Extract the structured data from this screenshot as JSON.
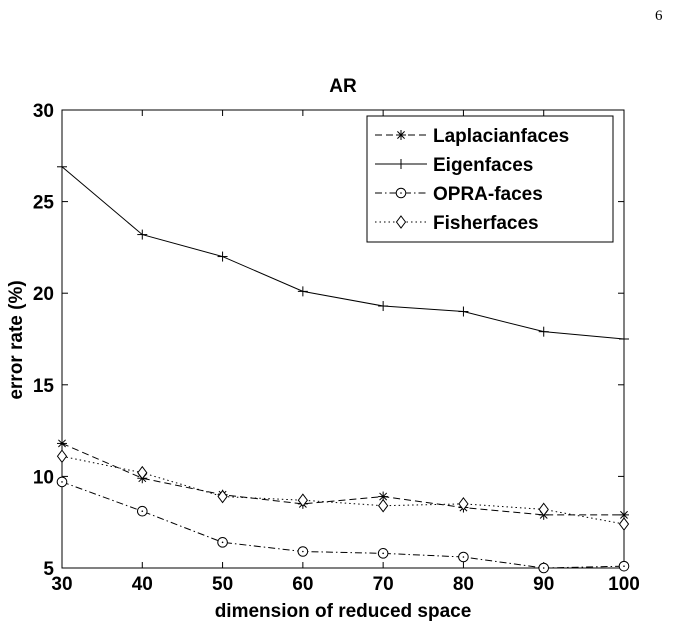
{
  "page_number": "6",
  "chart_data": {
    "type": "line",
    "title": "AR",
    "xlabel": "dimension of reduced space",
    "ylabel": "error rate (%)",
    "x": [
      30,
      40,
      50,
      60,
      70,
      80,
      90,
      100
    ],
    "xlim": [
      30,
      100
    ],
    "ylim": [
      5,
      30
    ],
    "xticks": [
      30,
      40,
      50,
      60,
      70,
      80,
      90,
      100
    ],
    "yticks": [
      5,
      10,
      15,
      20,
      25,
      30
    ],
    "grid": false,
    "legend_position": "top-right",
    "series": [
      {
        "name": "Laplacianfaces",
        "marker": "asterisk",
        "line_style": "dashed",
        "color": "#000000",
        "values": [
          11.8,
          9.9,
          9.0,
          8.5,
          8.9,
          8.3,
          7.9,
          7.9
        ]
      },
      {
        "name": "Eigenfaces",
        "marker": "plus",
        "line_style": "solid",
        "color": "#000000",
        "values": [
          26.9,
          23.2,
          22.0,
          20.1,
          19.3,
          19.0,
          17.9,
          17.5
        ]
      },
      {
        "name": "OPRA-faces",
        "marker": "circle",
        "line_style": "dashdot",
        "color": "#000000",
        "values": [
          9.7,
          8.1,
          6.4,
          5.9,
          5.8,
          5.6,
          5.0,
          5.1
        ]
      },
      {
        "name": "Fisherfaces",
        "marker": "diamond",
        "line_style": "dotted",
        "color": "#000000",
        "values": [
          11.1,
          10.2,
          8.9,
          8.7,
          8.4,
          8.5,
          8.2,
          7.4
        ]
      }
    ]
  }
}
